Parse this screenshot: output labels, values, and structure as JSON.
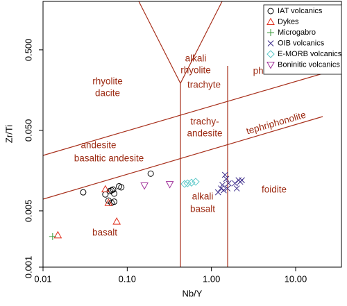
{
  "chart_data": {
    "type": "scatter",
    "x_label": "Nb/Y",
    "y_label": "Zr/Ti",
    "log_x": true,
    "log_y": true,
    "xlim": [
      0.01,
      35
    ],
    "ylim": [
      0.001,
      2
    ],
    "xticks": [
      0.01,
      {
        "value": 0.1,
        "label": "0.10"
      },
      {
        "value": 1,
        "label": "1.00"
      },
      {
        "value": 10,
        "label": "10.00"
      }
    ],
    "yticks": [
      0.001,
      0.005,
      {
        "value": 0.05,
        "label": "0.050"
      },
      {
        "value": 0.5,
        "label": "0.500"
      }
    ],
    "legend": "top-right",
    "annotations": [
      "alkali",
      "rhyolite",
      "rhyolite",
      "dacite",
      "trachyte",
      "phonolite",
      "trachy-",
      "andesite",
      "tephriphonolite",
      "andesite",
      "basaltic andesite",
      "alkali",
      "basalt",
      "foidite",
      "basalt"
    ],
    "series": [
      {
        "name": "IAT volcanics",
        "color": "#000000",
        "marker": "circle",
        "x": [
          0.03,
          0.055,
          0.062,
          0.065,
          0.068,
          0.07,
          0.06,
          0.065,
          0.08,
          0.085,
          0.19,
          0.07
        ],
        "values": [
          0.0085,
          0.008,
          0.0088,
          0.009,
          0.0092,
          0.0082,
          0.0067,
          0.0063,
          0.0101,
          0.0098,
          0.0145,
          0.0065
        ]
      },
      {
        "name": "Dykes",
        "color": "#e0301e",
        "marker": "triangle",
        "x": [
          0.015,
          0.055,
          0.06,
          0.075
        ],
        "values": [
          0.0025,
          0.0093,
          0.0063,
          0.0037
        ]
      },
      {
        "name": "Microgabro",
        "color": "#3a9a3a",
        "marker": "plus",
        "x": [
          0.013
        ],
        "values": [
          0.0024
        ]
      },
      {
        "name": "OIB volcanics",
        "color": "#3b2a8a",
        "marker": "cross",
        "x": [
          1.2,
          1.3,
          1.35,
          1.45,
          1.5,
          1.55,
          1.6,
          1.9,
          2.0,
          2.1,
          2.2,
          2.3,
          1.4
        ],
        "values": [
          0.0085,
          0.0095,
          0.0105,
          0.014,
          0.0125,
          0.0095,
          0.011,
          0.011,
          0.0095,
          0.012,
          0.0115,
          0.012,
          0.009
        ]
      },
      {
        "name": "E-MORB volcanics",
        "color": "#5bc8c8",
        "marker": "diamond",
        "x": [
          0.48,
          0.52,
          0.58,
          0.65
        ],
        "values": [
          0.0108,
          0.011,
          0.0112,
          0.0115
        ]
      },
      {
        "name": "Boninitic volcanics",
        "color": "#a0309a",
        "marker": "down-triangle",
        "x": [
          0.16,
          0.32
        ],
        "values": [
          0.0103,
          0.0107
        ]
      }
    ]
  }
}
